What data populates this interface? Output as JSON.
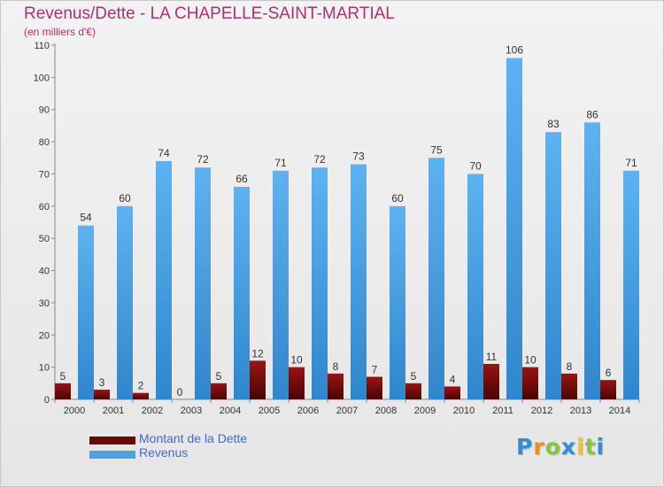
{
  "title": "Revenus/Dette - LA CHAPELLE-SAINT-MARTIAL",
  "subtitle": "(en milliers d'€)",
  "chart_data": {
    "type": "bar",
    "categories": [
      "2000",
      "2001",
      "2002",
      "2003",
      "2004",
      "2005",
      "2006",
      "2007",
      "2008",
      "2009",
      "2010",
      "2011",
      "2012",
      "2013",
      "2014"
    ],
    "series": [
      {
        "name": "Montant de la Dette",
        "values": [
          5,
          3,
          2,
          0,
          5,
          12,
          10,
          8,
          7,
          5,
          4,
          11,
          10,
          8,
          6
        ],
        "color": "#8a1010"
      },
      {
        "name": "Revenus",
        "values": [
          54,
          60,
          74,
          72,
          66,
          71,
          72,
          73,
          60,
          75,
          70,
          106,
          83,
          86,
          71
        ],
        "color": "#4aa3e6"
      }
    ],
    "yticks": [
      0,
      10,
      20,
      30,
      40,
      50,
      60,
      70,
      80,
      90,
      100,
      110
    ],
    "ylim": [
      0,
      110
    ],
    "grid": false,
    "legend": "bottom-left"
  },
  "legend": {
    "dette_label": "Montant de la Dette",
    "revenus_label": "Revenus",
    "dette_color": "#6e0808",
    "revenus_color": "#4aa3e6",
    "label_color": "#4466dd"
  },
  "logo": {
    "letters": [
      "P",
      "r",
      "o",
      "x",
      "i",
      "t",
      "i"
    ],
    "colors": [
      "#2e8fd8",
      "#f08c1e",
      "#88c440",
      "#2e8fd8",
      "#f0c81e",
      "#88c440",
      "#2e8fd8"
    ]
  }
}
